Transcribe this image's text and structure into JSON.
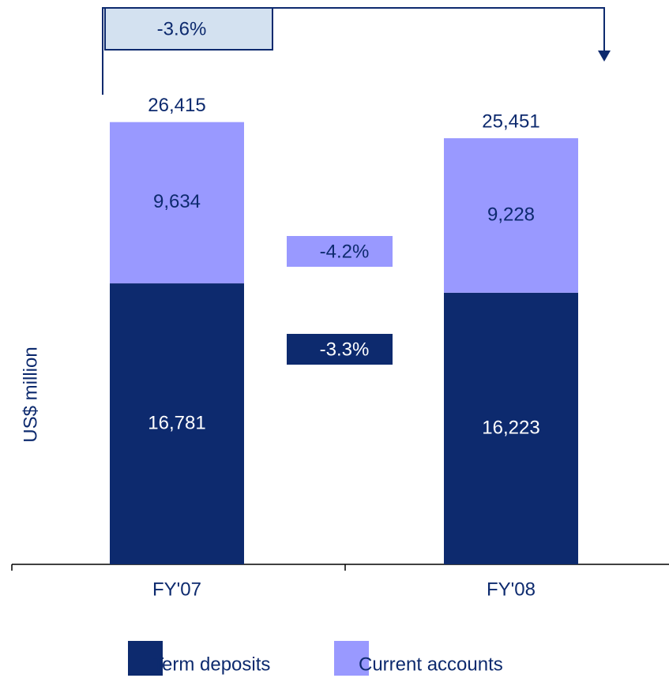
{
  "chart_data": {
    "type": "stacked_bar",
    "categories": [
      "FY'07",
      "FY'08"
    ],
    "series": [
      {
        "name": "Term deposits",
        "color": "#0d2a6e",
        "label_color": "#ffffff",
        "values": [
          16781,
          16223
        ],
        "value_labels": [
          "16,781",
          "16,223"
        ]
      },
      {
        "name": "Current accounts",
        "color": "#9999ff",
        "label_color": "#0d2a6e",
        "values": [
          9634,
          9228
        ],
        "value_labels": [
          "9,634",
          "9,228"
        ]
      }
    ],
    "totals": {
      "values": [
        26415,
        25451
      ],
      "value_labels": [
        "26,415",
        "25,451"
      ]
    },
    "ylabel": "US$ million",
    "ylim": [
      0,
      33000
    ],
    "annotations": [
      "-3.6%",
      "-4.2%",
      "-3.3%"
    ]
  }
}
